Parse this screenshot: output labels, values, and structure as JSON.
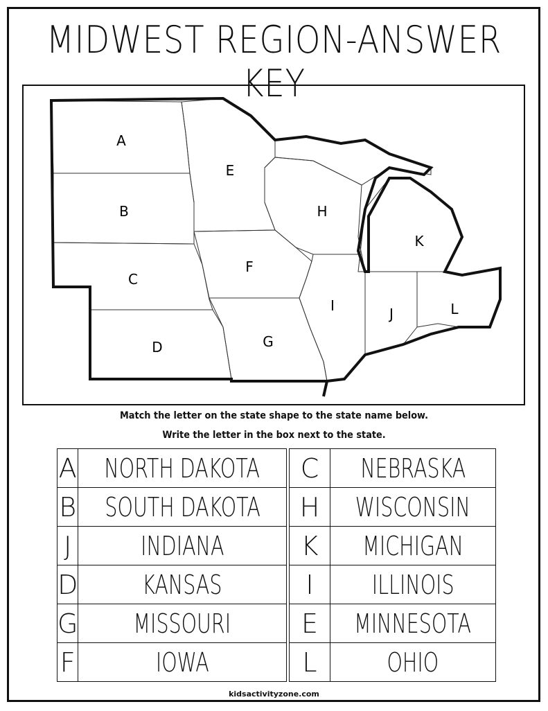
{
  "title": "MIDWEST REGION-ANSWER KEY",
  "map": {
    "labels": {
      "A": "A",
      "B": "B",
      "C": "C",
      "D": "D",
      "E": "E",
      "F": "F",
      "G": "G",
      "H": "H",
      "I": "I",
      "J": "J",
      "K": "K",
      "L": "L"
    }
  },
  "instructions": {
    "line1": "Match the letter on the state shape to the state name below.",
    "line2": "Write the letter in the box next to the state."
  },
  "left_table": [
    {
      "letter": "A",
      "state": "NORTH DAKOTA"
    },
    {
      "letter": "B",
      "state": "SOUTH DAKOTA"
    },
    {
      "letter": "J",
      "state": "INDIANA"
    },
    {
      "letter": "D",
      "state": "KANSAS"
    },
    {
      "letter": "G",
      "state": "MISSOURI"
    },
    {
      "letter": "F",
      "state": "IOWA"
    }
  ],
  "right_table": [
    {
      "letter": "C",
      "state": "NEBRASKA"
    },
    {
      "letter": "H",
      "state": "WISCONSIN"
    },
    {
      "letter": "K",
      "state": "MICHIGAN"
    },
    {
      "letter": "I",
      "state": "ILLINOIS"
    },
    {
      "letter": "E",
      "state": "MINNESOTA"
    },
    {
      "letter": "L",
      "state": "OHIO"
    }
  ],
  "footer": "kidsactivityzone.com"
}
